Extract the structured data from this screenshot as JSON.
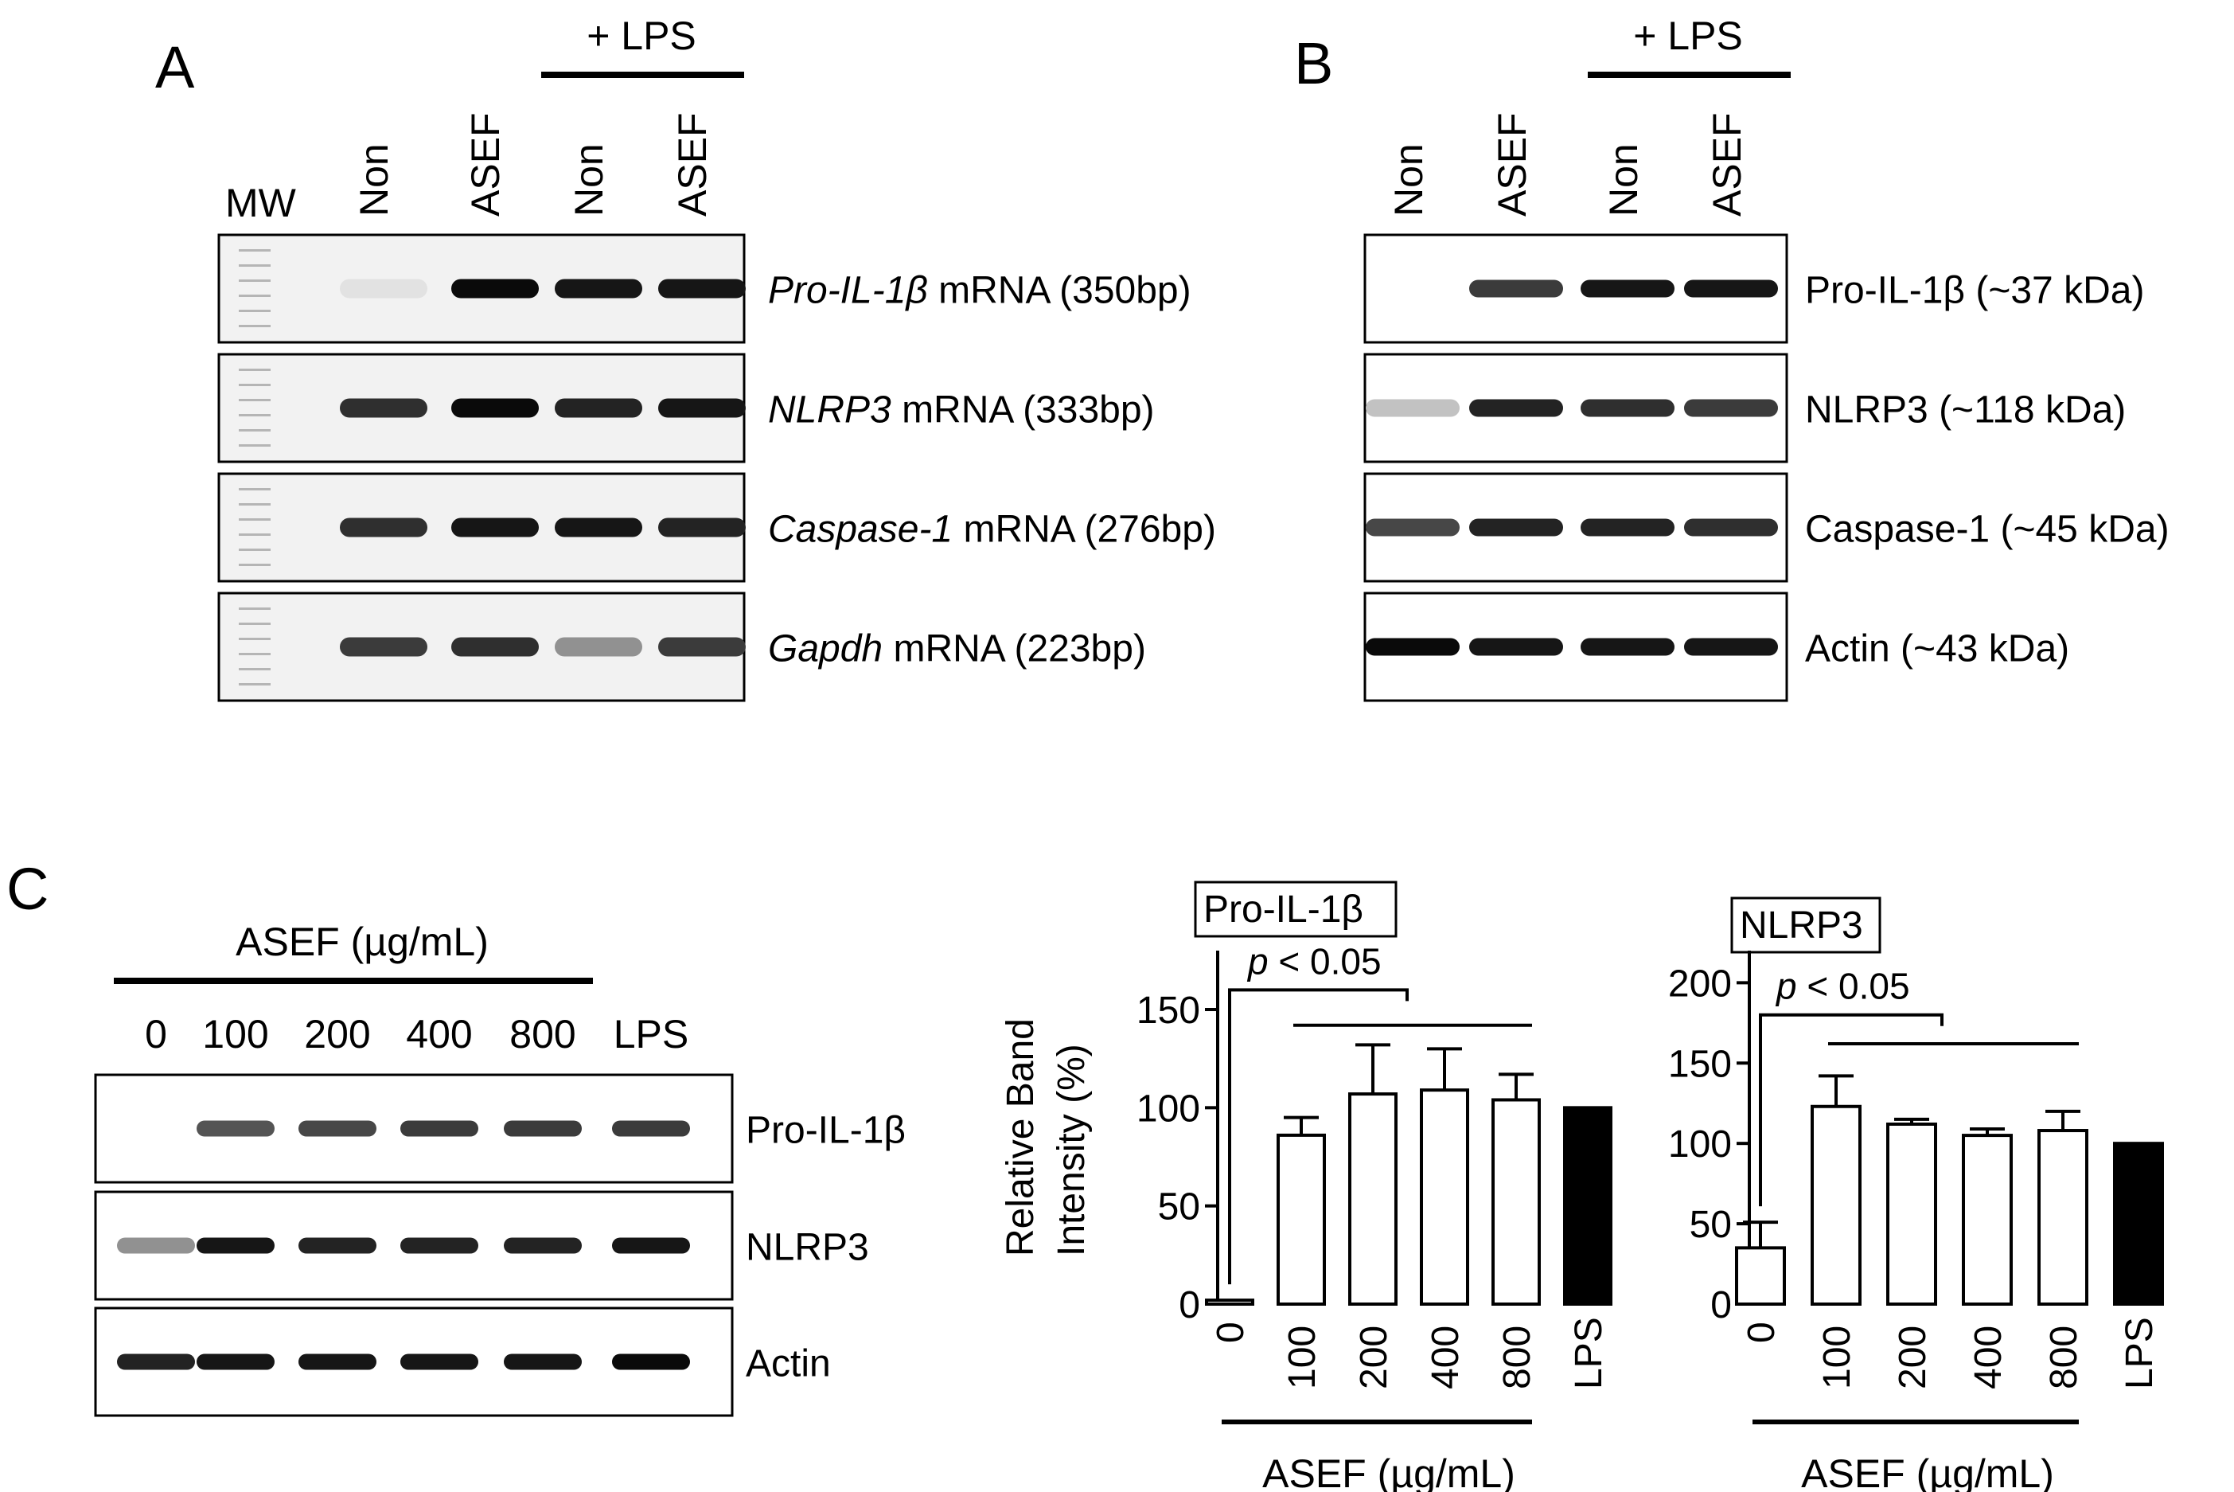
{
  "panels": {
    "A": {
      "letter": "A",
      "lps_label": "+ LPS",
      "mw_label": "MW",
      "lanes": [
        "Non",
        "ASEF",
        "Non",
        "ASEF"
      ],
      "rows": [
        {
          "gene": "Pro-IL-1β",
          "suffix": " mRNA (350bp)",
          "bands": [
            0.12,
            1.0,
            0.95,
            0.95
          ]
        },
        {
          "gene": "NLRP3",
          "suffix": " mRNA (333bp)",
          "bands": [
            0.85,
            1.0,
            0.9,
            0.95
          ]
        },
        {
          "gene": "Caspase-1",
          "suffix": " mRNA (276bp)",
          "bands": [
            0.85,
            0.95,
            0.95,
            0.9
          ]
        },
        {
          "gene": "Gapdh",
          "suffix": " mRNA (223bp)",
          "bands": [
            0.8,
            0.85,
            0.45,
            0.8
          ]
        }
      ]
    },
    "B": {
      "letter": "B",
      "lps_label": "+ LPS",
      "lanes": [
        "Non",
        "ASEF",
        "Non",
        "ASEF"
      ],
      "rows": [
        {
          "label": "Pro-IL-1β (~37 kDa)",
          "bands": [
            0.0,
            0.8,
            0.95,
            0.95
          ]
        },
        {
          "label": "NLRP3 (~118 kDa)",
          "bands": [
            0.25,
            0.9,
            0.85,
            0.8
          ]
        },
        {
          "label": "Caspase-1 (~45 kDa)",
          "bands": [
            0.75,
            0.9,
            0.9,
            0.85
          ]
        },
        {
          "label": "Actin (~43 kDa)",
          "bands": [
            1.0,
            0.95,
            0.95,
            0.95
          ]
        }
      ]
    },
    "C": {
      "letter": "C",
      "asef_label": "ASEF (µg/mL)",
      "lanes": [
        "0",
        "100",
        "200",
        "400",
        "800",
        "LPS"
      ],
      "rows": [
        {
          "label": "Pro-IL-1β",
          "bands": [
            0.0,
            0.7,
            0.75,
            0.8,
            0.8,
            0.8
          ]
        },
        {
          "label": "NLRP3",
          "bands": [
            0.45,
            0.95,
            0.9,
            0.9,
            0.9,
            0.95
          ]
        },
        {
          "label": "Actin",
          "bands": [
            0.9,
            0.95,
            0.95,
            0.95,
            0.95,
            1.0
          ]
        }
      ]
    }
  },
  "chart_data": [
    {
      "type": "bar",
      "title": "Pro-IL-1β",
      "ylabel": "Relative Band Intensity (%)",
      "xlabel": "ASEF (µg/mL)",
      "categories": [
        "0",
        "100",
        "200",
        "400",
        "800",
        "LPS"
      ],
      "values": [
        2,
        86,
        107,
        109,
        104,
        100
      ],
      "errors": [
        0,
        9,
        25,
        21,
        13,
        0
      ],
      "fills": [
        "#ffffff",
        "#ffffff",
        "#ffffff",
        "#ffffff",
        "#ffffff",
        "#000000"
      ],
      "ylim": [
        0,
        180
      ],
      "yticks": [
        0,
        50,
        100,
        150
      ],
      "annotation": "p < 0.05"
    },
    {
      "type": "bar",
      "title": "NLRP3",
      "ylabel": "",
      "xlabel": "ASEF (µg/mL)",
      "categories": [
        "0",
        "100",
        "200",
        "400",
        "800",
        "LPS"
      ],
      "values": [
        35,
        123,
        112,
        105,
        108,
        100
      ],
      "errors": [
        16,
        19,
        3,
        4,
        12,
        0
      ],
      "fills": [
        "#ffffff",
        "#ffffff",
        "#ffffff",
        "#ffffff",
        "#ffffff",
        "#000000"
      ],
      "ylim": [
        0,
        220
      ],
      "yticks": [
        0,
        50,
        100,
        150,
        200
      ],
      "annotation": "p < 0.05"
    }
  ]
}
